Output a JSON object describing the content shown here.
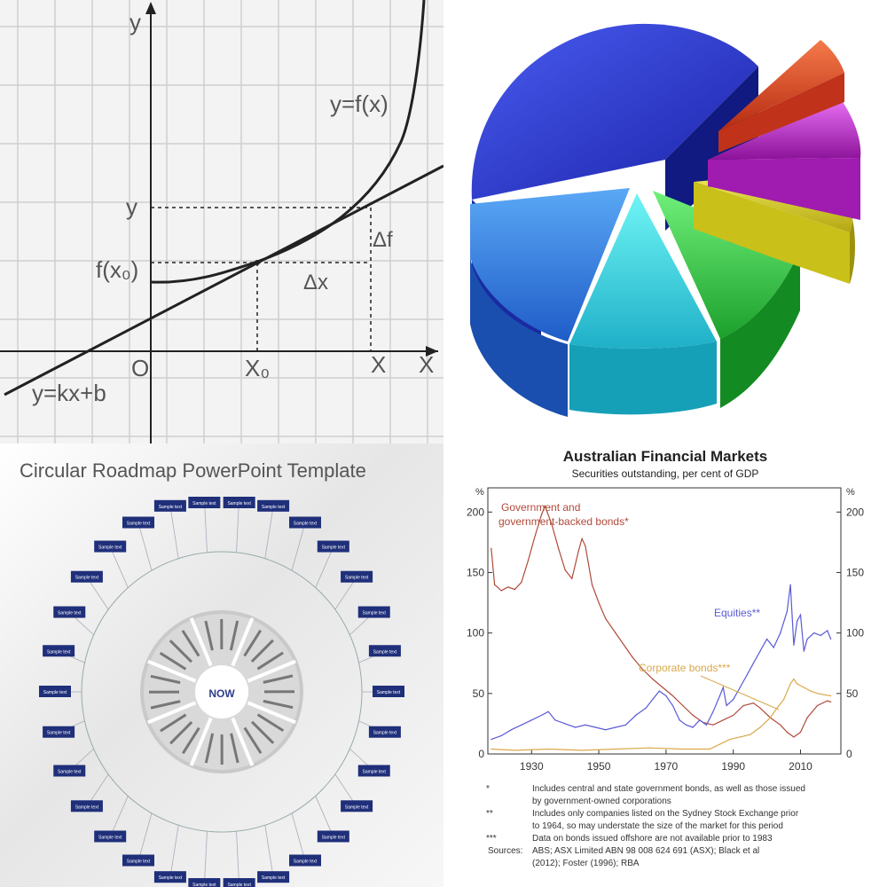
{
  "graph": {
    "label_y_axis": "y",
    "label_curve": "y=f(x)",
    "label_y_point": "y",
    "label_fx0": "f(x₀)",
    "label_delta_f": "Δf",
    "label_delta_x": "Δx",
    "label_origin": "O",
    "label_x0": "X₀",
    "label_x_point": "X",
    "label_x_axis": "X",
    "label_line": "y=kx+b"
  },
  "pie": {
    "slice_colors": [
      "#2a3fd6",
      "#e23a1c",
      "#c81fd8",
      "#e6df1c",
      "#2fd24a",
      "#36e6e6",
      "#2a86e6"
    ]
  },
  "roadmap": {
    "title": "Circular Roadmap PowerPoint Template",
    "center_label": "NOW",
    "item_label": "Sample text"
  },
  "markets": {
    "title": "Australian Financial Markets",
    "subtitle": "Securities outstanding, per cent of GDP",
    "unit_left": "%",
    "unit_right": "%",
    "footnotes": [
      {
        "mark": "*",
        "text": "Includes central and state government bonds, as well as those issued"
      },
      {
        "mark": "",
        "text": "by government-owned corporations"
      },
      {
        "mark": "**",
        "text": "Includes only companies listed on the Sydney Stock Exchange prior"
      },
      {
        "mark": "",
        "text": "to 1964, so may understate the size of the market for this period"
      },
      {
        "mark": "***",
        "text": "Data on bonds issued offshore are not available prior to 1983"
      },
      {
        "mark": "Sources:",
        "text": "ABS; ASX Limited ABN 98 008 624 691 (ASX); Black et al"
      },
      {
        "mark": "",
        "text": "(2012); Foster (1996); RBA"
      }
    ]
  },
  "chart_data": {
    "type": "line",
    "title": "Australian Financial Markets",
    "subtitle": "Securities outstanding, per cent of GDP",
    "ylabel": "%",
    "ylim": [
      0,
      220
    ],
    "xlim": [
      1917,
      2022
    ],
    "yticks": [
      0,
      50,
      100,
      150,
      200
    ],
    "xticks": [
      1930,
      1950,
      1970,
      1990,
      2010
    ],
    "grid": false,
    "series": [
      {
        "name": "Government and government-backed bonds*",
        "color": "#b04a3a",
        "points": [
          [
            1918,
            170
          ],
          [
            1919,
            140
          ],
          [
            1921,
            135
          ],
          [
            1923,
            138
          ],
          [
            1925,
            136
          ],
          [
            1927,
            142
          ],
          [
            1929,
            160
          ],
          [
            1931,
            180
          ],
          [
            1933,
            198
          ],
          [
            1934,
            205
          ],
          [
            1936,
            190
          ],
          [
            1938,
            170
          ],
          [
            1940,
            152
          ],
          [
            1942,
            145
          ],
          [
            1944,
            168
          ],
          [
            1945,
            178
          ],
          [
            1946,
            172
          ],
          [
            1948,
            140
          ],
          [
            1950,
            125
          ],
          [
            1952,
            112
          ],
          [
            1955,
            100
          ],
          [
            1958,
            88
          ],
          [
            1960,
            80
          ],
          [
            1963,
            70
          ],
          [
            1966,
            62
          ],
          [
            1969,
            55
          ],
          [
            1972,
            48
          ],
          [
            1975,
            40
          ],
          [
            1978,
            32
          ],
          [
            1981,
            26
          ],
          [
            1984,
            24
          ],
          [
            1987,
            28
          ],
          [
            1990,
            32
          ],
          [
            1993,
            40
          ],
          [
            1996,
            42
          ],
          [
            1998,
            38
          ],
          [
            2001,
            30
          ],
          [
            2004,
            24
          ],
          [
            2006,
            18
          ],
          [
            2008,
            14
          ],
          [
            2010,
            18
          ],
          [
            2012,
            30
          ],
          [
            2015,
            40
          ],
          [
            2018,
            44
          ],
          [
            2019,
            43
          ]
        ]
      },
      {
        "name": "Equities**",
        "color": "#5a5ad6",
        "points": [
          [
            1918,
            12
          ],
          [
            1921,
            15
          ],
          [
            1924,
            20
          ],
          [
            1927,
            24
          ],
          [
            1930,
            28
          ],
          [
            1933,
            32
          ],
          [
            1935,
            35
          ],
          [
            1937,
            28
          ],
          [
            1940,
            25
          ],
          [
            1943,
            22
          ],
          [
            1946,
            24
          ],
          [
            1949,
            22
          ],
          [
            1952,
            20
          ],
          [
            1955,
            22
          ],
          [
            1958,
            24
          ],
          [
            1961,
            32
          ],
          [
            1964,
            38
          ],
          [
            1966,
            45
          ],
          [
            1968,
            52
          ],
          [
            1970,
            48
          ],
          [
            1972,
            40
          ],
          [
            1974,
            28
          ],
          [
            1976,
            24
          ],
          [
            1978,
            22
          ],
          [
            1980,
            28
          ],
          [
            1982,
            24
          ],
          [
            1984,
            35
          ],
          [
            1986,
            48
          ],
          [
            1987,
            55
          ],
          [
            1988,
            40
          ],
          [
            1990,
            45
          ],
          [
            1992,
            55
          ],
          [
            1994,
            65
          ],
          [
            1996,
            75
          ],
          [
            1998,
            85
          ],
          [
            2000,
            95
          ],
          [
            2002,
            88
          ],
          [
            2004,
            100
          ],
          [
            2006,
            118
          ],
          [
            2007,
            140
          ],
          [
            2008,
            90
          ],
          [
            2009,
            110
          ],
          [
            2010,
            115
          ],
          [
            2011,
            85
          ],
          [
            2012,
            95
          ],
          [
            2014,
            100
          ],
          [
            2016,
            98
          ],
          [
            2018,
            102
          ],
          [
            2019,
            95
          ]
        ]
      },
      {
        "name": "Corporate bonds***",
        "color": "#d9a84a",
        "points": [
          [
            1918,
            4
          ],
          [
            1925,
            3
          ],
          [
            1935,
            4
          ],
          [
            1945,
            3
          ],
          [
            1955,
            4
          ],
          [
            1965,
            5
          ],
          [
            1975,
            4
          ],
          [
            1983,
            4
          ],
          [
            1986,
            8
          ],
          [
            1989,
            12
          ],
          [
            1992,
            14
          ],
          [
            1995,
            16
          ],
          [
            1998,
            22
          ],
          [
            2001,
            30
          ],
          [
            2003,
            38
          ],
          [
            2005,
            45
          ],
          [
            2007,
            58
          ],
          [
            2008,
            62
          ],
          [
            2009,
            58
          ],
          [
            2011,
            55
          ],
          [
            2013,
            52
          ],
          [
            2015,
            50
          ],
          [
            2017,
            49
          ],
          [
            2019,
            48
          ]
        ]
      }
    ]
  }
}
